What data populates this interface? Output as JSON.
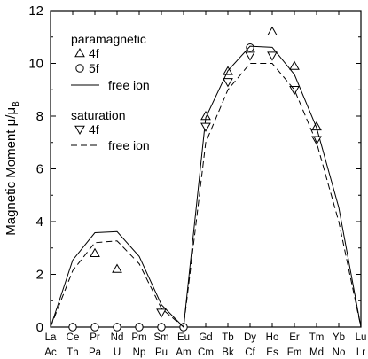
{
  "chart_data": {
    "type": "line",
    "title": "",
    "ylabel": "Magnetic Moment μ/μ",
    "ylabel_sub": "B",
    "ylim": [
      0,
      12
    ],
    "yticks": [
      0,
      2,
      4,
      6,
      8,
      10,
      12
    ],
    "xlim": [
      0,
      14
    ],
    "categories_row1": [
      "La",
      "Ce",
      "Pr",
      "Nd",
      "Pm",
      "Sm",
      "Eu",
      "Gd",
      "Tb",
      "Dy",
      "Ho",
      "Er",
      "Tm",
      "Yb",
      "Lu"
    ],
    "categories_row2": [
      "Ac",
      "Th",
      "Pa",
      "U",
      "Np",
      "Pu",
      "Am",
      "Cm",
      "Bk",
      "Cf",
      "Es",
      "Fm",
      "Md",
      "No",
      "Lr"
    ],
    "grid": false,
    "legend": {
      "placement": "top-left",
      "group1_title": "paramagnetic",
      "group2_title": "saturation"
    },
    "series": [
      {
        "name": "4f",
        "group": "paramagnetic",
        "style": "markers",
        "marker": "triangle-up",
        "points": [
          [
            2,
            2.8
          ],
          [
            3,
            2.2
          ],
          [
            7,
            8.0
          ],
          [
            8,
            9.7
          ],
          [
            10,
            11.2
          ],
          [
            11,
            9.9
          ],
          [
            12,
            7.6
          ]
        ]
      },
      {
        "name": "5f",
        "group": "paramagnetic",
        "style": "markers",
        "marker": "circle",
        "points": [
          [
            1,
            0
          ],
          [
            2,
            0
          ],
          [
            3,
            0
          ],
          [
            4,
            0
          ],
          [
            5,
            0
          ],
          [
            6,
            0
          ],
          [
            9,
            10.6
          ]
        ]
      },
      {
        "name": "free ion",
        "group": "paramagnetic",
        "style": "solid",
        "points": [
          [
            0,
            0
          ],
          [
            1,
            2.54
          ],
          [
            2,
            3.58
          ],
          [
            3,
            3.62
          ],
          [
            4,
            2.68
          ],
          [
            5,
            0.85
          ],
          [
            6,
            0
          ],
          [
            7,
            7.94
          ],
          [
            8,
            9.72
          ],
          [
            9,
            10.65
          ],
          [
            10,
            10.61
          ],
          [
            11,
            9.58
          ],
          [
            12,
            7.56
          ],
          [
            13,
            4.54
          ],
          [
            14,
            0
          ]
        ]
      },
      {
        "name": "4f",
        "group": "saturation",
        "style": "markers",
        "marker": "triangle-down",
        "points": [
          [
            5,
            0.55
          ],
          [
            7,
            7.6
          ],
          [
            8,
            9.3
          ],
          [
            9,
            10.3
          ],
          [
            10,
            10.3
          ],
          [
            11,
            9.0
          ],
          [
            12,
            7.1
          ]
        ]
      },
      {
        "name": "free ion",
        "group": "saturation",
        "style": "dashed",
        "points": [
          [
            0,
            0
          ],
          [
            1,
            2.14
          ],
          [
            2,
            3.2
          ],
          [
            3,
            3.27
          ],
          [
            4,
            2.4
          ],
          [
            5,
            0.71
          ],
          [
            6,
            0
          ],
          [
            7,
            7.0
          ],
          [
            8,
            9.0
          ],
          [
            9,
            10.0
          ],
          [
            10,
            10.0
          ],
          [
            11,
            9.0
          ],
          [
            12,
            7.0
          ],
          [
            13,
            4.0
          ],
          [
            14,
            0
          ]
        ]
      }
    ]
  }
}
